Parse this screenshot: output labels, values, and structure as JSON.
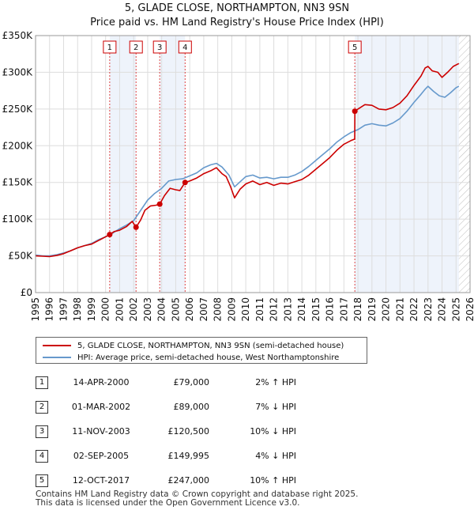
{
  "title_line1": "5, GLADE CLOSE, NORTHAMPTON, NN3 9SN",
  "title_line2": "Price paid vs. HM Land Registry's House Price Index (HPI)",
  "chart_data": {
    "type": "line",
    "title": "5, GLADE CLOSE, NORTHAMPTON, NN3 9SN — Price paid vs. HM Land Registry's House Price Index (HPI)",
    "xlim": [
      1995,
      2026
    ],
    "ylim": [
      0,
      350000
    ],
    "x_ticks": [
      "1995",
      "1996",
      "1997",
      "1998",
      "1999",
      "2000",
      "2001",
      "2002",
      "2003",
      "2004",
      "2005",
      "2006",
      "2007",
      "2008",
      "2009",
      "2010",
      "2011",
      "2012",
      "2013",
      "2014",
      "2015",
      "2016",
      "2017",
      "2018",
      "2019",
      "2020",
      "2021",
      "2022",
      "2023",
      "2024",
      "2025",
      "2026"
    ],
    "y_ticks": [
      {
        "value": 0,
        "label": "£0"
      },
      {
        "value": 50000,
        "label": "£50K"
      },
      {
        "value": 100000,
        "label": "£100K"
      },
      {
        "value": 150000,
        "label": "£150K"
      },
      {
        "value": 200000,
        "label": "£200K"
      },
      {
        "value": 250000,
        "label": "£250K"
      },
      {
        "value": 300000,
        "label": "£300K"
      },
      {
        "value": 350000,
        "label": "£350K"
      }
    ],
    "series": [
      {
        "name": "5, GLADE CLOSE, NORTHAMPTON, NN3 9SN (semi-detached house)",
        "color": "#cc0000",
        "points": [
          [
            1995.0,
            50000
          ],
          [
            1995.5,
            49500
          ],
          [
            1996.0,
            49000
          ],
          [
            1996.5,
            50500
          ],
          [
            1997.0,
            53000
          ],
          [
            1997.5,
            57000
          ],
          [
            1998.0,
            61000
          ],
          [
            1998.5,
            64000
          ],
          [
            1999.0,
            66000
          ],
          [
            1999.5,
            71000
          ],
          [
            2000.0,
            76000
          ],
          [
            2000.29,
            79000
          ],
          [
            2000.6,
            83000
          ],
          [
            2001.0,
            85000
          ],
          [
            2001.5,
            90000
          ],
          [
            2001.9,
            97000
          ],
          [
            2002.17,
            89000
          ],
          [
            2002.5,
            99000
          ],
          [
            2002.8,
            112000
          ],
          [
            2003.2,
            118000
          ],
          [
            2003.6,
            119000
          ],
          [
            2003.86,
            120500
          ],
          [
            2004.2,
            132000
          ],
          [
            2004.6,
            142000
          ],
          [
            2005.0,
            140000
          ],
          [
            2005.3,
            139000
          ],
          [
            2005.67,
            149995
          ],
          [
            2006.0,
            152000
          ],
          [
            2006.5,
            156000
          ],
          [
            2007.0,
            162000
          ],
          [
            2007.5,
            166000
          ],
          [
            2007.9,
            170000
          ],
          [
            2008.3,
            162000
          ],
          [
            2008.6,
            158000
          ],
          [
            2008.9,
            145000
          ],
          [
            2009.2,
            129000
          ],
          [
            2009.6,
            141000
          ],
          [
            2010.0,
            148000
          ],
          [
            2010.5,
            152000
          ],
          [
            2011.0,
            147000
          ],
          [
            2011.5,
            150000
          ],
          [
            2012.0,
            146000
          ],
          [
            2012.5,
            149000
          ],
          [
            2013.0,
            148000
          ],
          [
            2013.5,
            151000
          ],
          [
            2014.0,
            154000
          ],
          [
            2014.5,
            160000
          ],
          [
            2015.0,
            168000
          ],
          [
            2015.5,
            176000
          ],
          [
            2016.0,
            184000
          ],
          [
            2016.5,
            194000
          ],
          [
            2017.0,
            202000
          ],
          [
            2017.5,
            207000
          ],
          [
            2017.77,
            209000
          ],
          [
            2017.78,
            247000
          ],
          [
            2018.0,
            250000
          ],
          [
            2018.5,
            256000
          ],
          [
            2019.0,
            255000
          ],
          [
            2019.5,
            250000
          ],
          [
            2020.0,
            249000
          ],
          [
            2020.5,
            252000
          ],
          [
            2021.0,
            258000
          ],
          [
            2021.5,
            268000
          ],
          [
            2022.0,
            282000
          ],
          [
            2022.5,
            295000
          ],
          [
            2022.8,
            306000
          ],
          [
            2023.0,
            308000
          ],
          [
            2023.3,
            302000
          ],
          [
            2023.7,
            300000
          ],
          [
            2024.0,
            293000
          ],
          [
            2024.4,
            300000
          ],
          [
            2024.8,
            308000
          ],
          [
            2025.2,
            312000
          ]
        ]
      },
      {
        "name": "HPI: Average price, semi-detached house, West Northamptonshire",
        "color": "#6699cc",
        "points": [
          [
            1995.0,
            51000
          ],
          [
            1995.5,
            50000
          ],
          [
            1996.0,
            50000
          ],
          [
            1996.5,
            51500
          ],
          [
            1997.0,
            54000
          ],
          [
            1997.5,
            57000
          ],
          [
            1998.0,
            61000
          ],
          [
            1998.5,
            64000
          ],
          [
            1999.0,
            67000
          ],
          [
            1999.5,
            72000
          ],
          [
            2000.0,
            76000
          ],
          [
            2000.5,
            81000
          ],
          [
            2001.0,
            87000
          ],
          [
            2001.5,
            92000
          ],
          [
            2002.0,
            98000
          ],
          [
            2002.5,
            112000
          ],
          [
            2003.0,
            126000
          ],
          [
            2003.5,
            135000
          ],
          [
            2004.0,
            142000
          ],
          [
            2004.5,
            152000
          ],
          [
            2005.0,
            154000
          ],
          [
            2005.5,
            155000
          ],
          [
            2006.0,
            159000
          ],
          [
            2006.5,
            163000
          ],
          [
            2007.0,
            170000
          ],
          [
            2007.5,
            174000
          ],
          [
            2007.9,
            176000
          ],
          [
            2008.3,
            171000
          ],
          [
            2008.8,
            160000
          ],
          [
            2009.2,
            144000
          ],
          [
            2009.6,
            151000
          ],
          [
            2010.0,
            158000
          ],
          [
            2010.5,
            160000
          ],
          [
            2011.0,
            156000
          ],
          [
            2011.5,
            157000
          ],
          [
            2012.0,
            155000
          ],
          [
            2012.5,
            157000
          ],
          [
            2013.0,
            157000
          ],
          [
            2013.5,
            160000
          ],
          [
            2014.0,
            165000
          ],
          [
            2014.5,
            172000
          ],
          [
            2015.0,
            180000
          ],
          [
            2015.5,
            188000
          ],
          [
            2016.0,
            196000
          ],
          [
            2016.5,
            205000
          ],
          [
            2017.0,
            212000
          ],
          [
            2017.5,
            218000
          ],
          [
            2018.0,
            222000
          ],
          [
            2018.5,
            228000
          ],
          [
            2019.0,
            230000
          ],
          [
            2019.5,
            228000
          ],
          [
            2020.0,
            227000
          ],
          [
            2020.5,
            231000
          ],
          [
            2021.0,
            237000
          ],
          [
            2021.5,
            247000
          ],
          [
            2022.0,
            259000
          ],
          [
            2022.5,
            270000
          ],
          [
            2022.8,
            277000
          ],
          [
            2023.0,
            281000
          ],
          [
            2023.4,
            274000
          ],
          [
            2023.8,
            268000
          ],
          [
            2024.2,
            266000
          ],
          [
            2024.6,
            272000
          ],
          [
            2025.0,
            279000
          ],
          [
            2025.2,
            281000
          ]
        ]
      }
    ],
    "sales": [
      {
        "num": "1",
        "date": "14-APR-2000",
        "x": 2000.29,
        "price": 79000,
        "price_label": "£79,000",
        "hpi_label": "2% ↑ HPI"
      },
      {
        "num": "2",
        "date": "01-MAR-2002",
        "x": 2002.17,
        "price": 89000,
        "price_label": "£89,000",
        "hpi_label": "7% ↓ HPI"
      },
      {
        "num": "3",
        "date": "11-NOV-2003",
        "x": 2003.86,
        "price": 120500,
        "price_label": "£120,500",
        "hpi_label": "10% ↓ HPI"
      },
      {
        "num": "4",
        "date": "02-SEP-2005",
        "x": 2005.67,
        "price": 149995,
        "price_label": "£149,995",
        "hpi_label": "4% ↓ HPI"
      },
      {
        "num": "5",
        "date": "12-OCT-2017",
        "x": 2017.78,
        "price": 247000,
        "price_label": "£247,000",
        "hpi_label": "10% ↑ HPI"
      }
    ],
    "shaded_ranges": [
      [
        2000.29,
        2002.17
      ],
      [
        2003.86,
        2005.67
      ],
      [
        2017.78,
        2025.2
      ]
    ],
    "projection_start": 2025.2,
    "colors": {
      "grid": "#dddddd",
      "band": "#eef3fb",
      "vline": "#dd4444",
      "plot_bg": "#ffffff"
    }
  },
  "legend": {
    "property_label": "5, GLADE CLOSE, NORTHAMPTON, NN3 9SN (semi-detached house)",
    "hpi_label": "HPI: Average price, semi-detached house, West Northamptonshire",
    "property_color": "#cc0000",
    "hpi_color": "#6699cc"
  },
  "footer": {
    "line1": "Contains HM Land Registry data © Crown copyright and database right 2025.",
    "line2": "This data is licensed under the Open Government Licence v3.0."
  }
}
